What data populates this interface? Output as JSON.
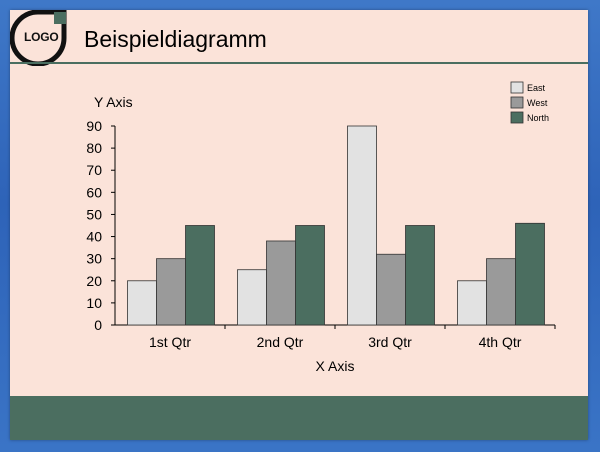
{
  "slide": {
    "title": "Beispieldiagramm",
    "logo_text": "LOGO"
  },
  "colors": {
    "slide_background": "#fbe3d9",
    "accent": "#4b6e60",
    "outer_background": "#3a70c4"
  },
  "chart_data": {
    "type": "bar",
    "title": "",
    "xlabel": "X Axis",
    "ylabel": "Y Axis",
    "ylim": [
      0,
      90
    ],
    "yticks": [
      0,
      10,
      20,
      30,
      40,
      50,
      60,
      70,
      80,
      90
    ],
    "categories": [
      "1st Qtr",
      "2nd Qtr",
      "3rd Qtr",
      "4th Qtr"
    ],
    "series": [
      {
        "name": "East",
        "color": "#e2e2e2",
        "values": [
          20,
          25,
          90,
          20
        ]
      },
      {
        "name": "West",
        "color": "#9a9a9a",
        "values": [
          30,
          38,
          32,
          30
        ]
      },
      {
        "name": "North",
        "color": "#4b6e60",
        "values": [
          45,
          45,
          45,
          46
        ]
      }
    ],
    "grid": false,
    "legend": "top-right"
  }
}
